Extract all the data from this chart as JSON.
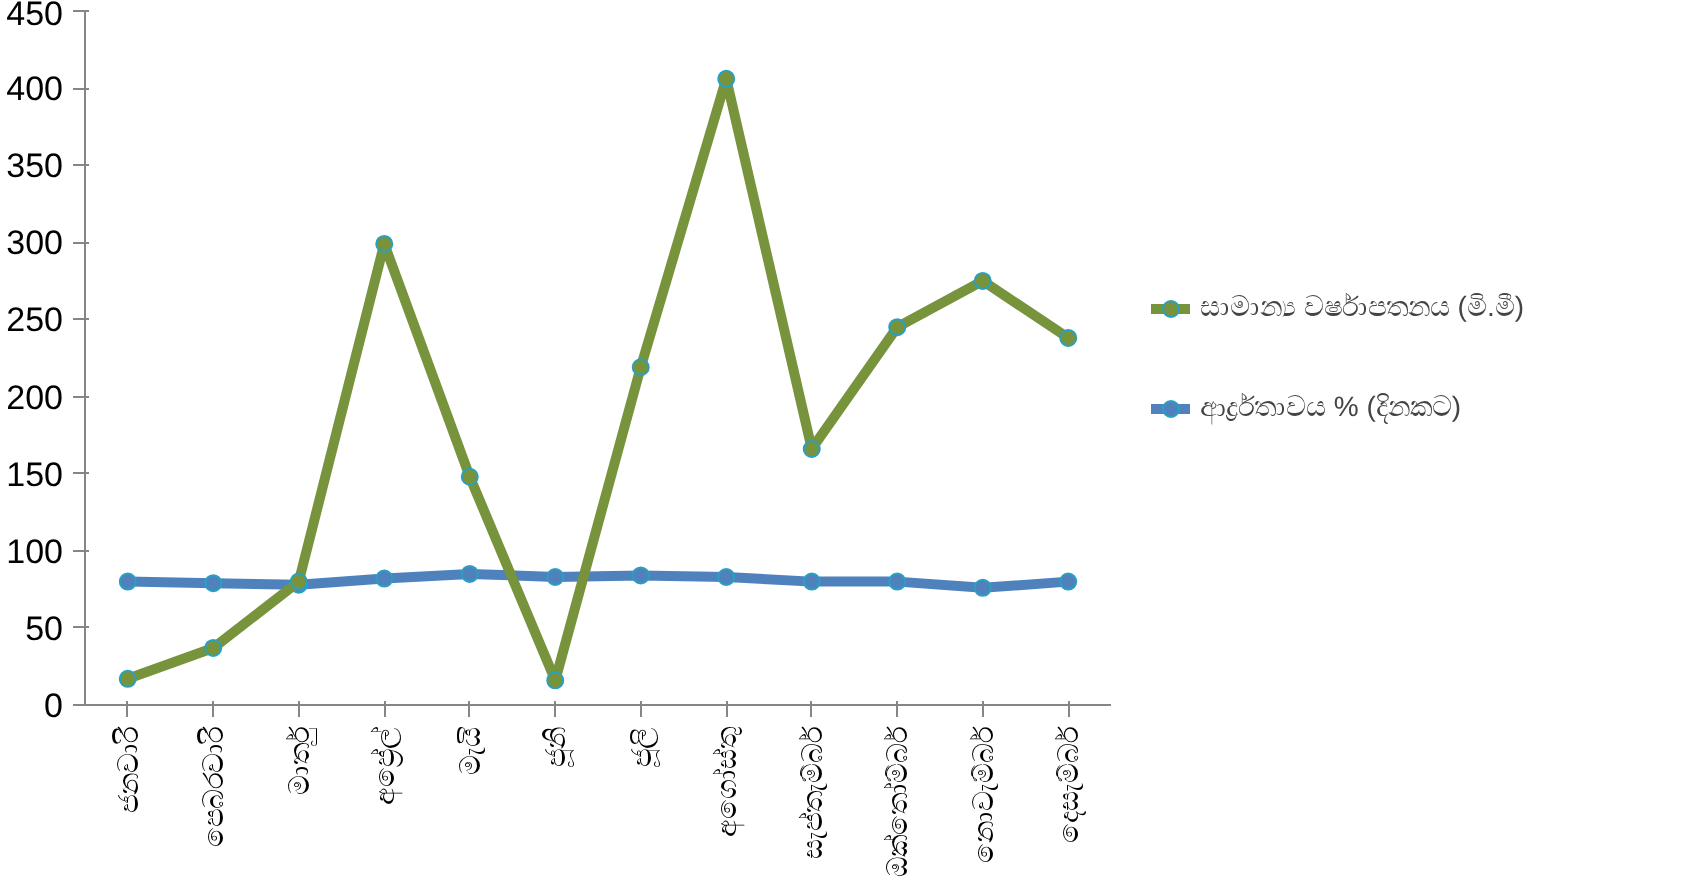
{
  "chart_data": {
    "type": "line",
    "categories": [
      "ජනවාරි",
      "පෙබරවාරි",
      "මාර්තු",
      "අප්‍රේල්",
      "මැයි",
      "ජූනි",
      "ජූලි",
      "අගෝස්තු",
      "සැප්තැම්බර්",
      "ඔක්තෝම්බර්",
      "නොවැම්බර්",
      "දෙසැම්බර්"
    ],
    "series": [
      {
        "name": "සාමාන්‍ය වර්ෂාපතනය (මි.මී)",
        "color": "#77933c",
        "values": [
          17,
          37,
          80,
          299,
          148,
          16,
          219,
          406,
          166,
          245,
          275,
          238
        ]
      },
      {
        "name": "ආර්ද්‍රතාවය % (දිනකට)",
        "color": "#4f81bd",
        "values": [
          80,
          79,
          78,
          82,
          85,
          83,
          84,
          83,
          80,
          80,
          76,
          80
        ]
      }
    ],
    "ylim": [
      0,
      450
    ],
    "yticks": [
      0,
      50,
      100,
      150,
      200,
      250,
      300,
      350,
      400,
      450
    ],
    "grid": false,
    "legend": "right",
    "marker": "circle"
  }
}
